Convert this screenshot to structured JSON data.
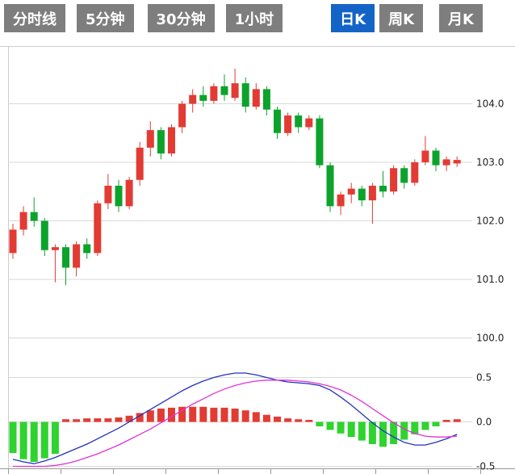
{
  "tabbar": {
    "active_index": 4,
    "tabs": [
      {
        "label": "分时线"
      },
      {
        "label": "5分钟"
      },
      {
        "label": "30分钟"
      },
      {
        "label": "1小时"
      },
      {
        "label": "日K"
      },
      {
        "label": "周K"
      },
      {
        "label": "月K"
      }
    ]
  },
  "colors": {
    "tab_bg": "#7e7e7e",
    "tab_active_bg": "#1464c8",
    "tab_text": "#ffffff",
    "up": "#e23b33",
    "down": "#0ca32c",
    "hist_up": "#e23b33",
    "hist_down": "#2fd32f",
    "dif_line": "#2233bb",
    "dea_line": "#e332d6",
    "grid": "#d9d9d9",
    "axis_text": "#222222"
  },
  "chart_data": [
    {
      "type": "candlestick",
      "title": "",
      "y_axis_ticks": [
        104.0,
        103.0,
        102.0,
        101.0,
        100.0
      ],
      "y_range": [
        100.0,
        105.0
      ],
      "grid": true,
      "ohlc": [
        [
          101.45,
          101.95,
          101.35,
          101.85
        ],
        [
          101.85,
          102.25,
          101.75,
          102.15
        ],
        [
          102.15,
          102.4,
          101.9,
          102.0
        ],
        [
          102.0,
          102.05,
          101.4,
          101.5
        ],
        [
          101.5,
          101.6,
          100.95,
          101.55
        ],
        [
          101.55,
          101.6,
          100.9,
          101.2
        ],
        [
          101.2,
          101.65,
          101.05,
          101.6
        ],
        [
          101.6,
          101.7,
          101.35,
          101.45
        ],
        [
          101.45,
          102.35,
          101.4,
          102.3
        ],
        [
          102.3,
          102.8,
          102.2,
          102.6
        ],
        [
          102.6,
          102.7,
          102.15,
          102.25
        ],
        [
          102.25,
          102.75,
          102.2,
          102.7
        ],
        [
          102.7,
          103.35,
          102.6,
          103.25
        ],
        [
          103.25,
          103.7,
          103.1,
          103.55
        ],
        [
          103.55,
          103.6,
          103.05,
          103.15
        ],
        [
          103.15,
          103.65,
          103.1,
          103.6
        ],
        [
          103.6,
          104.05,
          103.5,
          104.0
        ],
        [
          104.0,
          104.25,
          103.85,
          104.15
        ],
        [
          104.15,
          104.3,
          103.95,
          104.05
        ],
        [
          104.05,
          104.35,
          104.0,
          104.3
        ],
        [
          104.3,
          104.5,
          104.05,
          104.15
        ],
        [
          104.1,
          104.6,
          104.05,
          104.35
        ],
        [
          104.35,
          104.45,
          103.85,
          103.95
        ],
        [
          103.95,
          104.35,
          103.9,
          104.25
        ],
        [
          104.25,
          104.3,
          103.8,
          103.9
        ],
        [
          103.9,
          103.95,
          103.4,
          103.5
        ],
        [
          103.5,
          103.85,
          103.45,
          103.8
        ],
        [
          103.8,
          103.85,
          103.5,
          103.6
        ],
        [
          103.6,
          103.8,
          103.55,
          103.75
        ],
        [
          103.75,
          103.8,
          102.9,
          102.95
        ],
        [
          102.95,
          103.0,
          102.15,
          102.25
        ],
        [
          102.25,
          102.5,
          102.1,
          102.45
        ],
        [
          102.45,
          102.65,
          102.3,
          102.55
        ],
        [
          102.55,
          102.6,
          102.25,
          102.35
        ],
        [
          102.35,
          102.65,
          101.95,
          102.6
        ],
        [
          102.6,
          102.85,
          102.4,
          102.5
        ],
        [
          102.5,
          102.95,
          102.45,
          102.9
        ],
        [
          102.9,
          102.95,
          102.55,
          102.65
        ],
        [
          102.65,
          103.05,
          102.6,
          103.0
        ],
        [
          103.0,
          103.45,
          102.95,
          103.2
        ],
        [
          103.2,
          103.25,
          102.85,
          102.95
        ],
        [
          102.95,
          103.1,
          102.85,
          103.05
        ],
        [
          102.98,
          103.1,
          102.92,
          103.04
        ]
      ]
    },
    {
      "type": "bar",
      "name": "MACD",
      "y_axis_ticks": [
        0.5,
        0.0,
        -0.5
      ],
      "y_range": [
        -0.5,
        0.6
      ],
      "histogram": [
        -0.35,
        -0.42,
        -0.45,
        -0.41,
        -0.36,
        0.03,
        0.03,
        0.04,
        0.04,
        0.04,
        0.05,
        0.07,
        0.1,
        0.13,
        0.15,
        0.16,
        0.17,
        0.17,
        0.17,
        0.16,
        0.16,
        0.15,
        0.13,
        0.11,
        0.08,
        0.06,
        0.04,
        0.03,
        0.02,
        -0.05,
        -0.09,
        -0.13,
        -0.17,
        -0.21,
        -0.25,
        -0.28,
        -0.25,
        -0.2,
        -0.14,
        -0.09,
        -0.05,
        0.02,
        0.03
      ],
      "series": [
        {
          "name": "DIF",
          "color_ref": "dif_line",
          "values": [
            -0.42,
            -0.45,
            -0.47,
            -0.44,
            -0.4,
            -0.35,
            -0.3,
            -0.25,
            -0.19,
            -0.13,
            -0.07,
            0.0,
            0.07,
            0.14,
            0.21,
            0.28,
            0.35,
            0.41,
            0.46,
            0.5,
            0.53,
            0.55,
            0.55,
            0.53,
            0.5,
            0.47,
            0.45,
            0.44,
            0.43,
            0.41,
            0.36,
            0.28,
            0.19,
            0.09,
            -0.01,
            -0.1,
            -0.17,
            -0.23,
            -0.26,
            -0.26,
            -0.23,
            -0.19,
            -0.14
          ]
        },
        {
          "name": "DEA",
          "color_ref": "dea_line",
          "values": [
            -0.5,
            -0.5,
            -0.5,
            -0.5,
            -0.49,
            -0.47,
            -0.44,
            -0.4,
            -0.36,
            -0.31,
            -0.26,
            -0.2,
            -0.14,
            -0.08,
            -0.01,
            0.06,
            0.13,
            0.2,
            0.26,
            0.32,
            0.37,
            0.41,
            0.44,
            0.46,
            0.47,
            0.47,
            0.47,
            0.46,
            0.45,
            0.43,
            0.4,
            0.36,
            0.3,
            0.23,
            0.15,
            0.07,
            -0.01,
            -0.08,
            -0.13,
            -0.16,
            -0.17,
            -0.17,
            -0.16
          ]
        }
      ]
    }
  ]
}
